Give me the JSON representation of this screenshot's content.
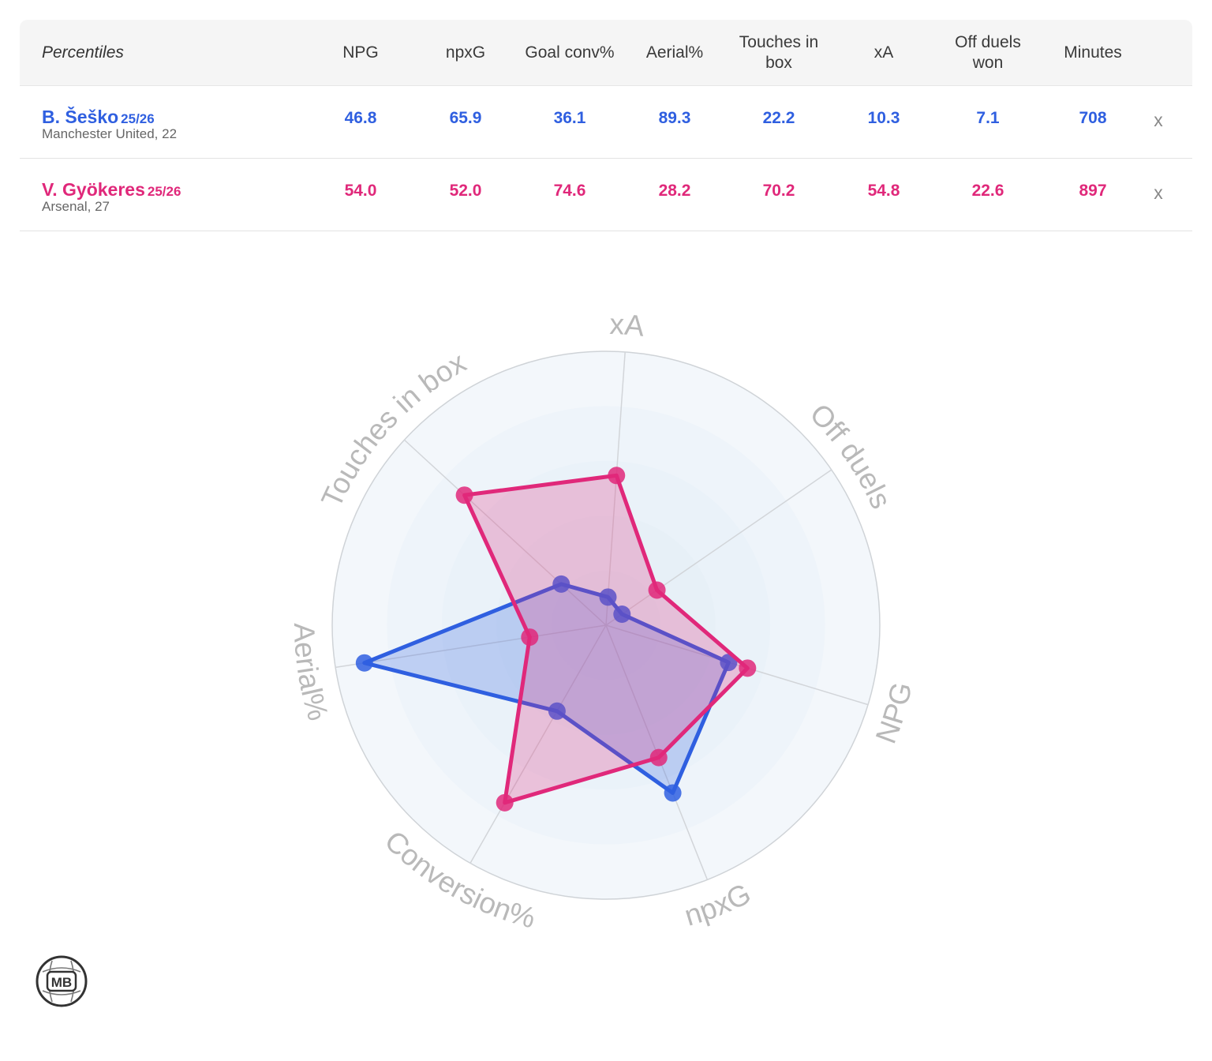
{
  "table": {
    "header": [
      "Percentiles",
      "NPG",
      "npxG",
      "Goal conv%",
      "Aerial%",
      "Touches in box",
      "xA",
      "Off duels won",
      "Minutes"
    ],
    "players": [
      {
        "name": "B. Šeško",
        "season": "25/26",
        "team": "Manchester United, 22",
        "values": [
          "46.8",
          "65.9",
          "36.1",
          "89.3",
          "22.2",
          "10.3",
          "7.1",
          "708"
        ],
        "color": "#2f5fe0",
        "remove_label": "x"
      },
      {
        "name": "V. Gyökeres",
        "season": "25/26",
        "team": "Arsenal, 27",
        "values": [
          "54.0",
          "52.0",
          "74.6",
          "28.2",
          "70.2",
          "54.8",
          "22.6",
          "897"
        ],
        "color": "#e0287a",
        "remove_label": "x"
      }
    ]
  },
  "chart_data": {
    "type": "radar",
    "axes": [
      "xA",
      "Off duels",
      "NPG",
      "npxG",
      "Conversion%",
      "Aerial%",
      "Touches in box"
    ],
    "range": [
      0,
      100
    ],
    "series": [
      {
        "name": "B. Šeško",
        "color": "#2f5fe0",
        "values": [
          10.3,
          7.1,
          46.8,
          65.9,
          36.1,
          89.3,
          22.2
        ]
      },
      {
        "name": "V. Gyökeres",
        "color": "#e0287a",
        "values": [
          54.8,
          22.6,
          54.0,
          52.0,
          74.6,
          28.2,
          70.2
        ]
      }
    ]
  },
  "logo": {
    "text": "MB"
  }
}
